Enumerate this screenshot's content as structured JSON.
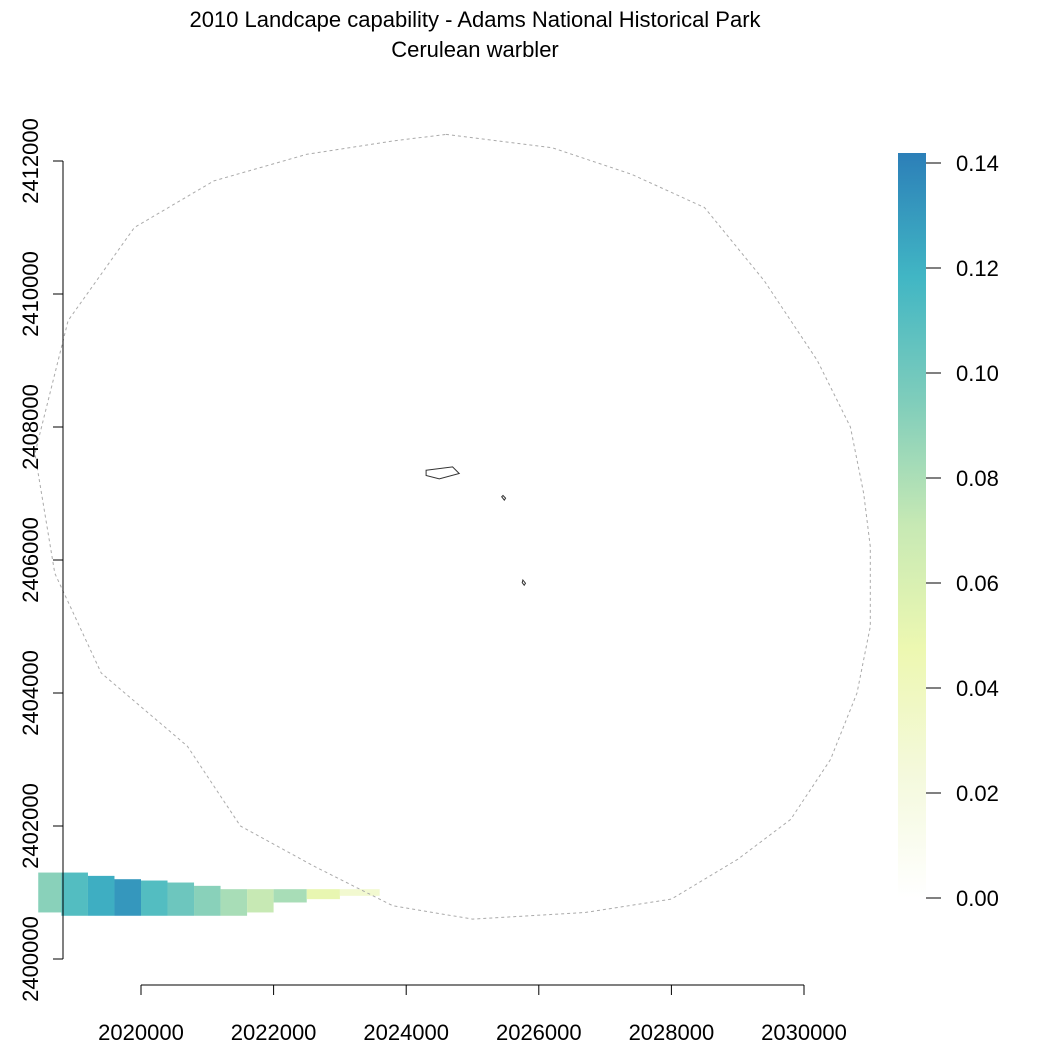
{
  "chart_data": {
    "type": "heatmap",
    "title": "2010 Landcape capability - Adams National Historical Park",
    "subtitle": "Cerulean warbler",
    "xlabel": "",
    "ylabel": "",
    "xlim": [
      2018000,
      2030000
    ],
    "ylim": [
      2400000,
      2412000
    ],
    "x_ticks": [
      2020000,
      2022000,
      2024000,
      2026000,
      2028000,
      2030000
    ],
    "x_tick_labels": [
      "2020000",
      "2022000",
      "2024000",
      "2026000",
      "2028000",
      "2030000"
    ],
    "y_ticks": [
      2400000,
      2402000,
      2404000,
      2406000,
      2408000,
      2410000,
      2412000
    ],
    "y_tick_labels": [
      "2400000",
      "2402000",
      "2404000",
      "2406000",
      "2408000",
      "2410000",
      "2412000"
    ],
    "grid": false,
    "legend": {
      "type": "colorbar",
      "placement": "right",
      "ticks": [
        0.0,
        0.02,
        0.04,
        0.06,
        0.08,
        0.1,
        0.12,
        0.14
      ],
      "tick_labels": [
        "0.00",
        "0.02",
        "0.04",
        "0.06",
        "0.08",
        "0.10",
        "0.12",
        "0.14"
      ],
      "range": [
        0.0,
        0.14
      ],
      "colors": [
        "#ffffff",
        "#f4f9dc",
        "#edf8b1",
        "#c7e9b4",
        "#7fcdbb",
        "#41b6c4",
        "#2c7fb8"
      ]
    },
    "buffer_outline": [
      [
        2024600,
        2412400
      ],
      [
        2026200,
        2412200
      ],
      [
        2027400,
        2411800
      ],
      [
        2028500,
        2411300
      ],
      [
        2029400,
        2410200
      ],
      [
        2030200,
        2409000
      ],
      [
        2030700,
        2408000
      ],
      [
        2030900,
        2407000
      ],
      [
        2031000,
        2406200
      ],
      [
        2031000,
        2405000
      ],
      [
        2030800,
        2404000
      ],
      [
        2030400,
        2403000
      ],
      [
        2029800,
        2402100
      ],
      [
        2029000,
        2401500
      ],
      [
        2028000,
        2400900
      ],
      [
        2026700,
        2400700
      ],
      [
        2025000,
        2400600
      ],
      [
        2023800,
        2400800
      ],
      [
        2022600,
        2401400
      ],
      [
        2021500,
        2402000
      ],
      [
        2020700,
        2403200
      ],
      [
        2019400,
        2404300
      ],
      [
        2018700,
        2405800
      ],
      [
        2018400,
        2407600
      ],
      [
        2018900,
        2409600
      ],
      [
        2019900,
        2411000
      ],
      [
        2021100,
        2411700
      ],
      [
        2022500,
        2412100
      ],
      [
        2023800,
        2412300
      ],
      [
        2024600,
        2412400
      ]
    ],
    "park_units": [
      [
        [
          2024300,
          2407350
        ],
        [
          2024700,
          2407400
        ],
        [
          2024800,
          2407300
        ],
        [
          2024500,
          2407220
        ],
        [
          2024300,
          2407270
        ],
        [
          2024300,
          2407350
        ]
      ],
      [
        [
          2025460,
          2406970
        ],
        [
          2025500,
          2406930
        ],
        [
          2025480,
          2406900
        ],
        [
          2025440,
          2406950
        ],
        [
          2025460,
          2406970
        ]
      ],
      [
        [
          2025760,
          2405700
        ],
        [
          2025800,
          2405650
        ],
        [
          2025780,
          2405620
        ],
        [
          2025750,
          2405660
        ],
        [
          2025760,
          2405700
        ]
      ]
    ],
    "raster_patches": [
      {
        "x0": 2018450,
        "x1": 2018800,
        "y0": 2400700,
        "y1": 2401300,
        "value": 0.09
      },
      {
        "x0": 2018800,
        "x1": 2019200,
        "y0": 2400650,
        "y1": 2401300,
        "value": 0.11
      },
      {
        "x0": 2019200,
        "x1": 2019600,
        "y0": 2400650,
        "y1": 2401250,
        "value": 0.12
      },
      {
        "x0": 2019600,
        "x1": 2020000,
        "y0": 2400650,
        "y1": 2401200,
        "value": 0.13
      },
      {
        "x0": 2020000,
        "x1": 2020400,
        "y0": 2400650,
        "y1": 2401180,
        "value": 0.11
      },
      {
        "x0": 2020400,
        "x1": 2020800,
        "y0": 2400650,
        "y1": 2401150,
        "value": 0.1
      },
      {
        "x0": 2020800,
        "x1": 2021200,
        "y0": 2400650,
        "y1": 2401100,
        "value": 0.09
      },
      {
        "x0": 2021200,
        "x1": 2021600,
        "y0": 2400650,
        "y1": 2401050,
        "value": 0.08
      },
      {
        "x0": 2021600,
        "x1": 2022000,
        "y0": 2400700,
        "y1": 2401050,
        "value": 0.07
      },
      {
        "x0": 2022000,
        "x1": 2022500,
        "y0": 2400850,
        "y1": 2401050,
        "value": 0.08
      },
      {
        "x0": 2022500,
        "x1": 2023000,
        "y0": 2400900,
        "y1": 2401050,
        "value": 0.05
      },
      {
        "x0": 2023000,
        "x1": 2023600,
        "y0": 2400950,
        "y1": 2401050,
        "value": 0.03
      }
    ]
  }
}
